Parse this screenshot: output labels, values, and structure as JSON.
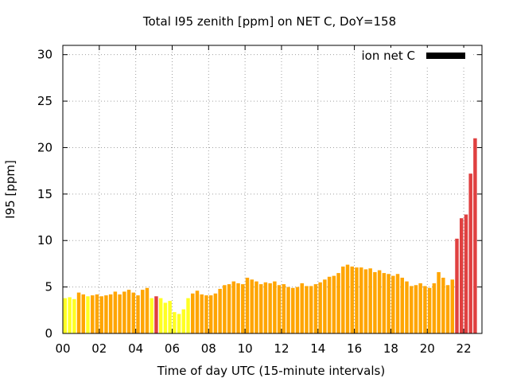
{
  "chart_data": {
    "type": "bar",
    "title": "Total I95 zenith [ppm] on NET C, DoY=158",
    "xlabel": "Time of day UTC (15-minute intervals)",
    "ylabel": "I95 [ppm]",
    "xlim": [
      0,
      23
    ],
    "ylim": [
      0,
      31
    ],
    "xticks": [
      0,
      2,
      4,
      6,
      8,
      10,
      12,
      14,
      16,
      18,
      20,
      22
    ],
    "xtick_labels": [
      "00",
      "02",
      "04",
      "06",
      "08",
      "10",
      "12",
      "14",
      "16",
      "18",
      "20",
      "22"
    ],
    "yticks": [
      0,
      5,
      10,
      15,
      20,
      25,
      30
    ],
    "ytick_labels": [
      "0",
      "5",
      "10",
      "15",
      "20",
      "25",
      "30"
    ],
    "grid": true,
    "legend": {
      "label": "ion net C",
      "color": "#000000",
      "position": "top-right"
    },
    "bar_interval_hours": 0.25,
    "x_first_bar": 0.125,
    "colors": {
      "yellow": "#ffff22",
      "orange": "#ffa500",
      "red": "#e04040"
    },
    "values": [
      3.8,
      3.9,
      3.7,
      4.4,
      4.2,
      4.0,
      4.1,
      4.2,
      4.0,
      4.1,
      4.2,
      4.5,
      4.2,
      4.5,
      4.7,
      4.4,
      4.1,
      4.7,
      4.9,
      3.8,
      4.0,
      3.8,
      3.3,
      3.5,
      2.3,
      2.1,
      2.6,
      3.8,
      4.3,
      4.6,
      4.2,
      4.1,
      4.1,
      4.3,
      4.8,
      5.2,
      5.3,
      5.6,
      5.4,
      5.3,
      6.0,
      5.8,
      5.6,
      5.3,
      5.5,
      5.4,
      5.6,
      5.2,
      5.3,
      5.0,
      4.9,
      5.0,
      5.4,
      5.1,
      5.1,
      5.3,
      5.5,
      5.8,
      6.1,
      6.2,
      6.5,
      7.2,
      7.4,
      7.2,
      7.1,
      7.1,
      6.9,
      7.0,
      6.6,
      6.8,
      6.5,
      6.4,
      6.2,
      6.4,
      6.0,
      5.6,
      5.1,
      5.2,
      5.4,
      5.1,
      4.9,
      5.4,
      6.6,
      6.0,
      5.2,
      5.8,
      10.2,
      12.4,
      12.8,
      17.2,
      21.0
    ],
    "bar_color_keys": [
      "yellow",
      "yellow",
      "yellow",
      "orange",
      "orange",
      "yellow",
      "orange",
      "orange",
      "orange",
      "orange",
      "orange",
      "orange",
      "orange",
      "orange",
      "orange",
      "orange",
      "orange",
      "orange",
      "orange",
      "yellow",
      "red",
      "yellow",
      "yellow",
      "yellow",
      "yellow",
      "yellow",
      "yellow",
      "yellow",
      "orange",
      "orange",
      "orange",
      "orange",
      "orange",
      "orange",
      "orange",
      "orange",
      "orange",
      "orange",
      "orange",
      "orange",
      "orange",
      "orange",
      "orange",
      "orange",
      "orange",
      "orange",
      "orange",
      "orange",
      "orange",
      "orange",
      "orange",
      "orange",
      "orange",
      "orange",
      "orange",
      "orange",
      "orange",
      "orange",
      "orange",
      "orange",
      "orange",
      "orange",
      "orange",
      "orange",
      "orange",
      "orange",
      "orange",
      "orange",
      "orange",
      "orange",
      "orange",
      "orange",
      "orange",
      "orange",
      "orange",
      "orange",
      "orange",
      "orange",
      "orange",
      "orange",
      "orange",
      "orange",
      "orange",
      "orange",
      "orange",
      "orange",
      "red",
      "red",
      "red",
      "red",
      "red"
    ]
  }
}
